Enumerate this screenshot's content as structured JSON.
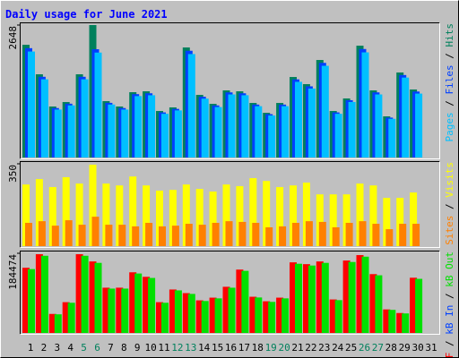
{
  "chart_data": [
    {
      "type": "bar",
      "title": "Daily usage for June 2021",
      "legend_separator": " / ",
      "legend": "right",
      "ylim": [
        0,
        2648
      ],
      "yticks": [
        2648
      ],
      "series": [
        {
          "name": "Pages",
          "color": "#00c0ff",
          "values": [
            2119,
            1564,
            959,
            1042,
            1564,
            2098,
            1059,
            959,
            1228,
            1245,
            874,
            942,
            2068,
            1177,
            1009,
            1261,
            1245,
            1026,
            840,
            1026,
            1513,
            1379,
            1833,
            874,
            1110,
            2102,
            1261,
            774,
            1598,
            1278,
            null
          ]
        },
        {
          "name": "Files",
          "color": "#0040ff",
          "values": [
            2186,
            1614,
            989,
            1076,
            1614,
            2165,
            1093,
            989,
            1267,
            1284,
            902,
            972,
            2134,
            1214,
            1041,
            1302,
            1284,
            1058,
            867,
            1058,
            1562,
            1423,
            1892,
            902,
            1146,
            2169,
            1302,
            798,
            1649,
            1319,
            null
          ]
        },
        {
          "name": "Hits",
          "color": "#00805c",
          "values": [
            2254,
            1664,
            1020,
            1109,
            1664,
            2648,
            1127,
            1020,
            1306,
            1324,
            930,
            1002,
            2200,
            1252,
            1073,
            1342,
            1324,
            1091,
            894,
            1091,
            1610,
            1467,
            1950,
            930,
            1181,
            2236,
            1342,
            823,
            1700,
            1360,
            null
          ]
        }
      ]
    },
    {
      "type": "bar",
      "legend": "right",
      "ylim": [
        0,
        350
      ],
      "yticks": [
        350
      ],
      "series": [
        {
          "name": "Sites",
          "color": "#ff8000",
          "values": [
            99,
            106,
            87,
            110,
            91,
            125,
            91,
            91,
            84,
            99,
            84,
            87,
            95,
            91,
            99,
            106,
            103,
            99,
            80,
            84,
            99,
            106,
            103,
            80,
            99,
            106,
            95,
            72,
            95,
            95,
            null
          ]
        },
        {
          "name": "Visits",
          "color": "#ffff00",
          "values": [
            262,
            285,
            251,
            293,
            266,
            346,
            266,
            258,
            296,
            258,
            236,
            239,
            262,
            243,
            232,
            262,
            255,
            289,
            277,
            251,
            258,
            270,
            220,
            220,
            220,
            266,
            258,
            205,
            205,
            228,
            null
          ]
        }
      ]
    },
    {
      "type": "bar",
      "legend": "right",
      "ylim": [
        0,
        184474
      ],
      "yticks": [
        184474
      ],
      "categories": [
        "1",
        "2",
        "3",
        "4",
        "5",
        "6",
        "7",
        "8",
        "9",
        "10",
        "11",
        "12",
        "13",
        "14",
        "15",
        "16",
        "17",
        "18",
        "19",
        "20",
        "21",
        "22",
        "23",
        "24",
        "25",
        "26",
        "27",
        "28",
        "29",
        "30",
        "31"
      ],
      "category_colors": [
        "#000000",
        "#000000",
        "#000000",
        "#000000",
        "#00805c",
        "#00805c",
        "#000000",
        "#000000",
        "#000000",
        "#000000",
        "#000000",
        "#00805c",
        "#00805c",
        "#000000",
        "#000000",
        "#000000",
        "#000000",
        "#000000",
        "#00805c",
        "#00805c",
        "#000000",
        "#000000",
        "#000000",
        "#000000",
        "#000000",
        "#00805c",
        "#00805c",
        "#000000",
        "#000000",
        "#000000",
        "#000000"
      ],
      "series": [
        {
          "name": "kB F",
          "color": "#ff0000",
          "values": [
            150912,
            182352,
            44016,
            71264,
            182352,
            165584,
            104800,
            104800,
            140432,
            129952,
            71264,
            100608,
            92224,
            75456,
            81744,
            106896,
            146720,
            83840,
            73360,
            81744,
            163488,
            159296,
            165584,
            77552,
            167680,
            180256,
            136240,
            54496,
            46112,
            127856,
            null
          ]
        },
        {
          "name": "kB In",
          "color": "#0040ff",
          "values": [
            0,
            0,
            0,
            0,
            0,
            0,
            0,
            0,
            0,
            0,
            0,
            0,
            0,
            0,
            0,
            0,
            0,
            0,
            0,
            0,
            0,
            0,
            0,
            0,
            0,
            0,
            0,
            0,
            0,
            0,
            null
          ]
        },
        {
          "name": "kB Out",
          "color": "#00e000",
          "values": [
            147894,
            178705,
            43136,
            69839,
            178705,
            162272,
            102704,
            102704,
            137623,
            127353,
            69839,
            98596,
            90380,
            73947,
            80109,
            104758,
            143786,
            82163,
            71893,
            80109,
            160218,
            156110,
            162272,
            76001,
            164326,
            176651,
            133515,
            53406,
            45190,
            125299,
            null
          ]
        }
      ]
    }
  ]
}
